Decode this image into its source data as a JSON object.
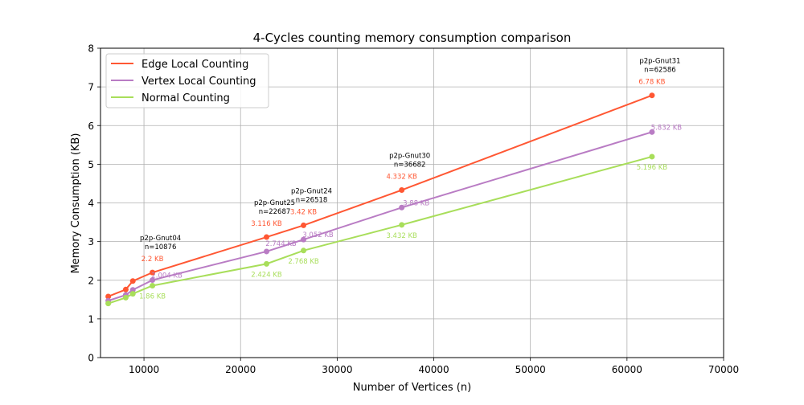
{
  "chart_data": {
    "type": "line",
    "title": "4-Cycles counting memory consumption comparison",
    "xlabel": "Number of Vertices (n)",
    "ylabel": "Memory Consumption (KB)",
    "xlim": [
      5500,
      70000
    ],
    "ylim": [
      0,
      8
    ],
    "xticks": [
      10000,
      20000,
      30000,
      40000,
      50000,
      60000,
      70000
    ],
    "yticks": [
      0,
      1,
      2,
      3,
      4,
      5,
      6,
      7,
      8
    ],
    "grid": true,
    "legend_position": "top-left",
    "x": [
      6301,
      8114,
      8846,
      10876,
      22687,
      26518,
      36682,
      62586
    ],
    "series": [
      {
        "name": "Edge Local Counting",
        "color": "#ff5733",
        "values": [
          1.58,
          1.76,
          1.98,
          2.2,
          3.116,
          3.42,
          4.332,
          6.78
        ]
      },
      {
        "name": "Vertex Local Counting",
        "color": "#b97cc4",
        "values": [
          1.47,
          1.62,
          1.75,
          2.004,
          2.744,
          3.052,
          3.88,
          5.832
        ]
      },
      {
        "name": "Normal Counting",
        "color": "#a8de5a",
        "values": [
          1.4,
          1.55,
          1.65,
          1.86,
          2.424,
          2.768,
          3.432,
          5.196
        ]
      }
    ],
    "value_labels": [
      {
        "series": 0,
        "index": 3,
        "text": "2.2 KB"
      },
      {
        "series": 0,
        "index": 4,
        "text": "3.116 KB"
      },
      {
        "series": 0,
        "index": 5,
        "text": "3.42 KB"
      },
      {
        "series": 0,
        "index": 6,
        "text": "4.332 KB"
      },
      {
        "series": 0,
        "index": 7,
        "text": "6.78 KB"
      },
      {
        "series": 1,
        "index": 3,
        "text": "2.004 KB"
      },
      {
        "series": 1,
        "index": 4,
        "text": "2.744 KB"
      },
      {
        "series": 1,
        "index": 5,
        "text": "3.052 KB"
      },
      {
        "series": 1,
        "index": 6,
        "text": "3.88 KB"
      },
      {
        "series": 1,
        "index": 7,
        "text": "5.832 KB"
      },
      {
        "series": 2,
        "index": 3,
        "text": "1.86 KB"
      },
      {
        "series": 2,
        "index": 4,
        "text": "2.424 KB"
      },
      {
        "series": 2,
        "index": 5,
        "text": "2.768 KB"
      },
      {
        "series": 2,
        "index": 6,
        "text": "3.432 KB"
      },
      {
        "series": 2,
        "index": 7,
        "text": "5.196 KB"
      }
    ],
    "annotations": [
      {
        "x": 10876,
        "name": "p2p-Gnut04",
        "n": "n=10876"
      },
      {
        "x": 22687,
        "name": "p2p-Gnut25",
        "n": "n=22687"
      },
      {
        "x": 26518,
        "name": "p2p-Gnut24",
        "n": "n=26518"
      },
      {
        "x": 36682,
        "name": "p2p-Gnut30",
        "n": "n=36682"
      },
      {
        "x": 62586,
        "name": "p2p-Gnut31",
        "n": "n=62586"
      }
    ]
  }
}
